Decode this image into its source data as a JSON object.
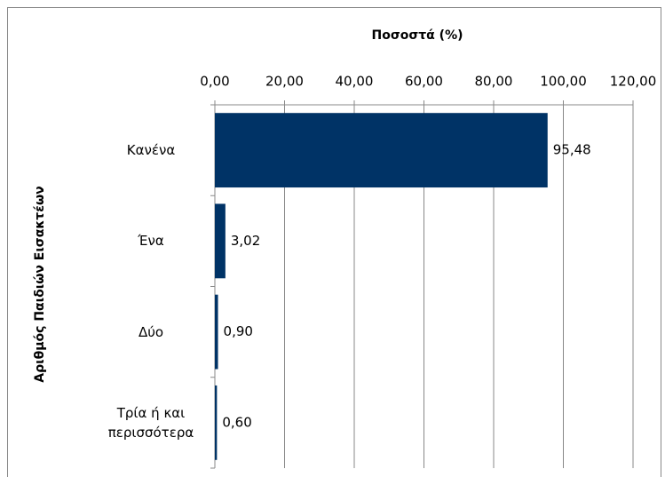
{
  "chart_data": {
    "type": "barh",
    "title": "Ποσοστά (%)",
    "y_label": "Αριθμός Παιδιών Εισακτέων",
    "categories": [
      "Κανένα",
      "Ένα",
      "Δύο",
      "Τρία ή και περισσότερα"
    ],
    "values": [
      95.48,
      3.02,
      0.9,
      0.6
    ],
    "value_labels": [
      "95,48",
      "3,02",
      "0,90",
      "0,60"
    ],
    "color": "#003366",
    "xlim": [
      0,
      120
    ],
    "xticks": [
      {
        "value": 0,
        "label": "0,00"
      },
      {
        "value": 20,
        "label": "20,00"
      },
      {
        "value": 40,
        "label": "40,00"
      },
      {
        "value": 60,
        "label": "60,00"
      },
      {
        "value": 80,
        "label": "80,00"
      },
      {
        "value": 100,
        "label": "100,00"
      },
      {
        "value": 120,
        "label": "120,00"
      }
    ],
    "grid": true
  }
}
